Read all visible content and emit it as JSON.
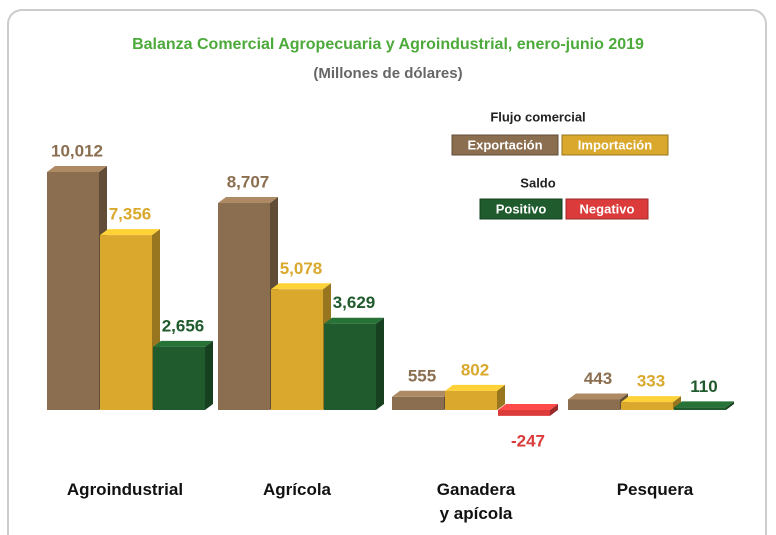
{
  "chart_data": {
    "type": "bar3d",
    "title": "Balanza Comercial Agropecuaria y Agroindustrial, enero-junio 2019",
    "subtitle": "(Millones de dólares)",
    "legend_title": "Flujo comercial",
    "categories": [
      "Agroindustrial",
      "Agrícola",
      "Ganadera\ny apícola",
      "Pesquera"
    ],
    "series": [
      {
        "name": "Exportación",
        "color": "#8a6e4f",
        "values": [
          10012,
          8707,
          555,
          443
        ],
        "value_labels": [
          "10,012",
          "8,707",
          "555",
          "443"
        ]
      },
      {
        "name": "Importación",
        "color": "#d9a82c",
        "values": [
          7356,
          5078,
          802,
          333
        ],
        "value_labels": [
          "7,356",
          "5,078",
          "802",
          "333"
        ]
      },
      {
        "name": "Saldo",
        "color": "#1f5b2c",
        "negative_color": "#dc3b3b",
        "legend_labels": [
          "Positivo",
          "Negativo"
        ],
        "values": [
          2656,
          3629,
          -247,
          110
        ],
        "value_labels": [
          "2,656",
          "3,629",
          "-247",
          "110"
        ]
      }
    ]
  }
}
